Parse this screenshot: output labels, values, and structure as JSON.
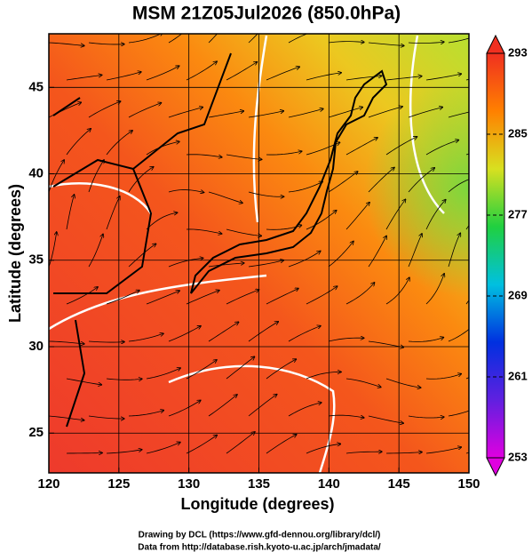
{
  "chart_data": {
    "type": "map",
    "title": "MSM 21Z05Jul2026 (850.0hPa)",
    "x_label": "Longitude (degrees)",
    "y_label": "Latitude  (degrees)",
    "xlim": [
      120,
      150
    ],
    "ylim": [
      22.7,
      48.1
    ],
    "xticks": [
      120,
      125,
      130,
      135,
      140,
      145,
      150
    ],
    "yticks": [
      25,
      30,
      35,
      40,
      45
    ],
    "grid": true,
    "colorbar": {
      "lim": [
        253,
        293
      ],
      "ticks": [
        253,
        261,
        269,
        277,
        285,
        293
      ],
      "colors": [
        "#e000e0",
        "#6020e0",
        "#0030e0",
        "#00c0e0",
        "#20d040",
        "#d8e020",
        "#ff8000",
        "#f03020"
      ]
    }
  },
  "credits": [
    "Drawing by DCL (https://www.gfd-dennou.org/library/dcl/)",
    "Data from http://database.rish.kyoto-u.ac.jp/arch/jmadata/"
  ]
}
